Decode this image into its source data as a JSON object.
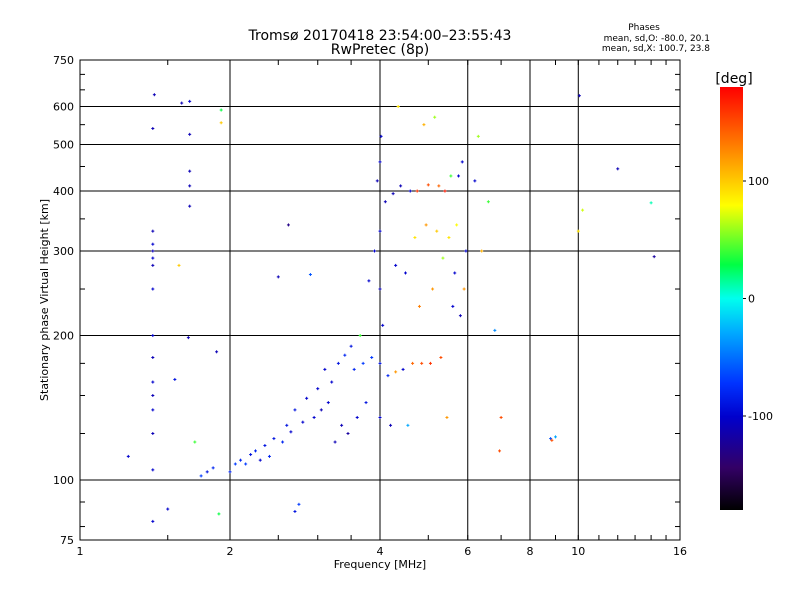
{
  "chart_data": {
    "type": "scatter",
    "title": "Tromsø 20170418 23:54:00–23:55:43",
    "subtitle": "RwPretec (8p)",
    "xlabel": "Frequency [MHz]",
    "ylabel": "Stationary phase Virtual Height [km]",
    "x_scale": "log2",
    "y_scale": "log",
    "xlim": [
      1,
      16
    ],
    "ylim": [
      75,
      750
    ],
    "x_ticks": [
      1,
      2,
      4,
      6,
      8,
      10,
      16
    ],
    "x_tick_labels": [
      "1",
      "2",
      "4",
      "6",
      "8",
      "10",
      "16"
    ],
    "y_ticks": [
      75,
      100,
      200,
      300,
      400,
      500,
      600,
      750
    ],
    "y_tick_labels": [
      "75",
      "100",
      "200",
      "300",
      "400",
      "500",
      "600",
      "750"
    ],
    "x_gridlines": [
      2,
      4,
      6,
      8,
      10
    ],
    "y_gridlines": [
      100,
      200,
      300,
      400,
      500,
      600
    ],
    "grid": true,
    "legend": {
      "title": "Phases",
      "line1": "mean, sd,O: -80.0, 20.1",
      "line2": "mean, sd,X: 100.7, 23.8"
    },
    "colorbar": {
      "label": "[deg]",
      "range": [
        -180,
        180
      ],
      "ticks": [
        100,
        0,
        -100
      ],
      "tick_labels": [
        "100",
        "0",
        "-100"
      ],
      "colormap": "rainbow"
    },
    "series": [
      {
        "points": [
          [
            1.25,
            112,
            -100
          ],
          [
            1.4,
            82,
            -100
          ],
          [
            1.4,
            105,
            -100
          ],
          [
            1.4,
            125,
            -110
          ],
          [
            1.4,
            140,
            -100
          ],
          [
            1.4,
            150,
            -110
          ],
          [
            1.4,
            160,
            -100
          ],
          [
            1.4,
            180,
            -110
          ],
          [
            1.4,
            200,
            -100
          ],
          [
            1.4,
            250,
            -100
          ],
          [
            1.4,
            280,
            -110
          ],
          [
            1.4,
            290,
            -100
          ],
          [
            1.4,
            300,
            -110
          ],
          [
            1.4,
            310,
            -100
          ],
          [
            1.4,
            330,
            -110
          ],
          [
            1.4,
            540,
            -110
          ],
          [
            1.41,
            635,
            -110
          ],
          [
            1.5,
            87,
            -100
          ],
          [
            1.55,
            162,
            -90
          ],
          [
            1.58,
            280,
            100
          ],
          [
            1.6,
            610,
            -110
          ],
          [
            1.65,
            198,
            -110
          ],
          [
            1.66,
            372,
            -110
          ],
          [
            1.66,
            410,
            -110
          ],
          [
            1.66,
            440,
            -110
          ],
          [
            1.66,
            525,
            -110
          ],
          [
            1.66,
            615,
            -100
          ],
          [
            1.7,
            120,
            40
          ],
          [
            1.75,
            102,
            -70
          ],
          [
            1.8,
            104,
            -90
          ],
          [
            1.85,
            106,
            -80
          ],
          [
            1.88,
            185,
            -110
          ],
          [
            1.9,
            85,
            30
          ],
          [
            1.92,
            555,
            100
          ],
          [
            1.92,
            590,
            30
          ],
          [
            2.0,
            104,
            -80
          ],
          [
            2.05,
            108,
            -70
          ],
          [
            2.1,
            110,
            -80
          ],
          [
            2.15,
            108,
            -70
          ],
          [
            2.2,
            113,
            -90
          ],
          [
            2.25,
            115,
            -80
          ],
          [
            2.3,
            110,
            -100
          ],
          [
            2.35,
            118,
            -90
          ],
          [
            2.4,
            112,
            -80
          ],
          [
            2.45,
            122,
            -90
          ],
          [
            2.5,
            265,
            -110
          ],
          [
            2.55,
            120,
            -80
          ],
          [
            2.6,
            130,
            -90
          ],
          [
            2.62,
            340,
            -130
          ],
          [
            2.65,
            126,
            -100
          ],
          [
            2.7,
            86,
            -90
          ],
          [
            2.7,
            140,
            -90
          ],
          [
            2.75,
            89,
            -70
          ],
          [
            2.8,
            132,
            -100
          ],
          [
            2.85,
            148,
            -100
          ],
          [
            2.9,
            268,
            -60
          ],
          [
            2.95,
            135,
            -100
          ],
          [
            3.0,
            155,
            -100
          ],
          [
            3.05,
            140,
            -110
          ],
          [
            3.1,
            170,
            -100
          ],
          [
            3.15,
            145,
            -100
          ],
          [
            3.2,
            160,
            -100
          ],
          [
            3.25,
            120,
            -110
          ],
          [
            3.3,
            175,
            -90
          ],
          [
            3.35,
            130,
            -110
          ],
          [
            3.4,
            182,
            -80
          ],
          [
            3.45,
            125,
            -120
          ],
          [
            3.5,
            190,
            -90
          ],
          [
            3.55,
            170,
            -80
          ],
          [
            3.6,
            135,
            -100
          ],
          [
            3.65,
            200,
            40
          ],
          [
            3.7,
            175,
            -70
          ],
          [
            3.75,
            145,
            -90
          ],
          [
            3.8,
            260,
            -100
          ],
          [
            3.85,
            180,
            -70
          ],
          [
            3.9,
            300,
            -100
          ],
          [
            3.95,
            420,
            -110
          ],
          [
            4.0,
            135,
            -100
          ],
          [
            4.0,
            175,
            -90
          ],
          [
            4.0,
            250,
            -110
          ],
          [
            4.0,
            330,
            -100
          ],
          [
            4.0,
            460,
            -100
          ],
          [
            4.02,
            520,
            -100
          ],
          [
            4.05,
            210,
            -100
          ],
          [
            4.1,
            380,
            -110
          ],
          [
            4.15,
            165,
            -80
          ],
          [
            4.2,
            130,
            -110
          ],
          [
            4.25,
            395,
            -110
          ],
          [
            4.3,
            168,
            120
          ],
          [
            4.3,
            280,
            -100
          ],
          [
            4.35,
            600,
            90
          ],
          [
            4.4,
            410,
            -110
          ],
          [
            4.45,
            170,
            -100
          ],
          [
            4.5,
            270,
            -100
          ],
          [
            4.55,
            130,
            -30
          ],
          [
            4.6,
            400,
            -100
          ],
          [
            4.65,
            175,
            140
          ],
          [
            4.7,
            320,
            90
          ],
          [
            4.75,
            400,
            160
          ],
          [
            4.8,
            230,
            130
          ],
          [
            4.85,
            175,
            150
          ],
          [
            4.9,
            550,
            110
          ],
          [
            4.95,
            340,
            120
          ],
          [
            5.0,
            412,
            150
          ],
          [
            5.05,
            175,
            160
          ],
          [
            5.1,
            250,
            120
          ],
          [
            5.15,
            570,
            60
          ],
          [
            5.2,
            330,
            100
          ],
          [
            5.25,
            410,
            140
          ],
          [
            5.3,
            180,
            150
          ],
          [
            5.35,
            290,
            60
          ],
          [
            5.4,
            400,
            170
          ],
          [
            5.45,
            135,
            120
          ],
          [
            5.5,
            320,
            90
          ],
          [
            5.55,
            430,
            40
          ],
          [
            5.6,
            230,
            -100
          ],
          [
            5.65,
            270,
            -100
          ],
          [
            5.7,
            340,
            80
          ],
          [
            5.75,
            430,
            -100
          ],
          [
            5.8,
            220,
            -110
          ],
          [
            5.85,
            460,
            -100
          ],
          [
            5.9,
            250,
            120
          ],
          [
            5.95,
            300,
            -100
          ],
          [
            6.2,
            420,
            -100
          ],
          [
            6.3,
            520,
            60
          ],
          [
            6.4,
            300,
            110
          ],
          [
            6.6,
            380,
            40
          ],
          [
            6.8,
            205,
            -40
          ],
          [
            6.95,
            115,
            150
          ],
          [
            7.0,
            135,
            150
          ],
          [
            8.8,
            122,
            -60
          ],
          [
            8.85,
            121,
            150
          ],
          [
            9.0,
            123,
            -30
          ],
          [
            10.0,
            330,
            90
          ],
          [
            10.05,
            632,
            -110
          ],
          [
            10.2,
            365,
            70
          ],
          [
            12.0,
            445,
            -110
          ],
          [
            14.0,
            378,
            10
          ],
          [
            14.2,
            292,
            -120
          ]
        ]
      }
    ]
  }
}
